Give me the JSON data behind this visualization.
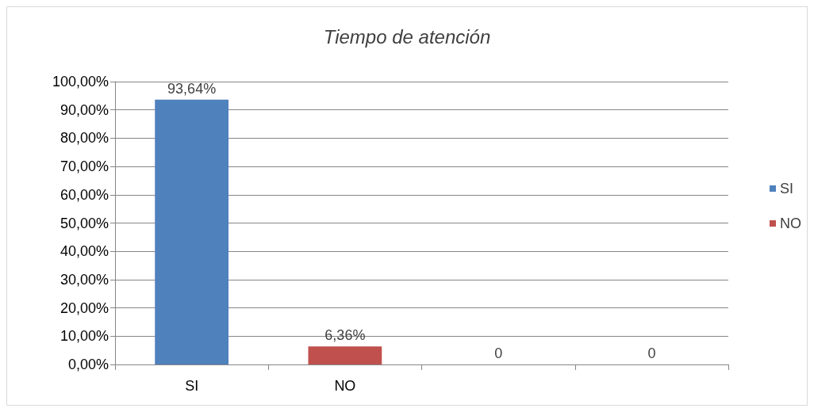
{
  "chart_data": {
    "type": "bar",
    "title": "Tiempo de atención",
    "categories": [
      "SI",
      "NO",
      null,
      null
    ],
    "stacked": true,
    "series": [
      {
        "name": "SI",
        "color": "#4f81bd",
        "values": [
          93.64,
          null,
          0,
          null
        ],
        "value_labels": [
          "93,64%",
          null,
          "0",
          null
        ]
      },
      {
        "name": "NO",
        "color": "#c0504d",
        "values": [
          null,
          6.36,
          null,
          0
        ],
        "value_labels": [
          null,
          "6,36%",
          null,
          "0"
        ]
      }
    ],
    "ylim": [
      0,
      100
    ],
    "yticks": [
      {
        "value": 0,
        "label": "0,00%"
      },
      {
        "value": 10,
        "label": "10,00%"
      },
      {
        "value": 20,
        "label": "20,00%"
      },
      {
        "value": 30,
        "label": "30,00%"
      },
      {
        "value": 40,
        "label": "40,00%"
      },
      {
        "value": 50,
        "label": "50,00%"
      },
      {
        "value": 60,
        "label": "60,00%"
      },
      {
        "value": 70,
        "label": "70,00%"
      },
      {
        "value": 80,
        "label": "80,00%"
      },
      {
        "value": 90,
        "label": "90,00%"
      },
      {
        "value": 100,
        "label": "100,00%"
      }
    ],
    "grid": "y",
    "legend": "right"
  }
}
